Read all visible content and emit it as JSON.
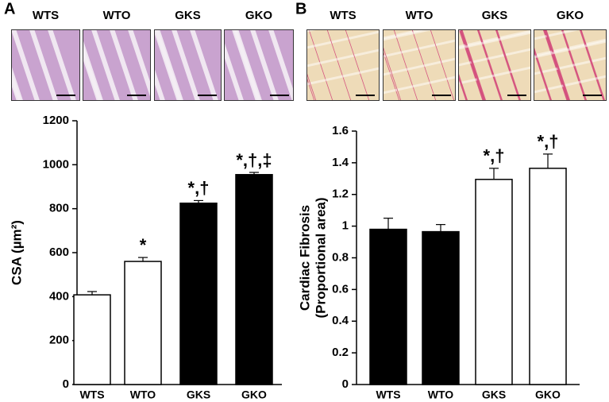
{
  "chart_data": [
    {
      "type": "bar",
      "panel": "A",
      "image_labels": [
        "WTS",
        "WTO",
        "GKS",
        "GKO"
      ],
      "ylabel": [
        "CSA (µm²)"
      ],
      "categories": [
        "WTS",
        "WTO",
        "GKS",
        "GKO"
      ],
      "values": [
        408,
        560,
        825,
        955
      ],
      "errors": [
        15,
        18,
        12,
        10
      ],
      "colors": [
        "#ffffff",
        "#ffffff",
        "#000000",
        "#000000"
      ],
      "annotations": [
        null,
        "*",
        "*,†",
        "*,†,‡"
      ],
      "ylim": [
        0,
        1200
      ],
      "yticks": [
        0,
        200,
        400,
        600,
        800,
        1000,
        1200
      ]
    },
    {
      "type": "bar",
      "panel": "B",
      "image_labels": [
        "WTS",
        "WTO",
        "GKS",
        "GKO"
      ],
      "ylabel": [
        "Cardiac Fibrosis",
        "(Proportional area)"
      ],
      "categories": [
        "WTS",
        "WTO",
        "GKS",
        "GKO"
      ],
      "values": [
        0.98,
        0.965,
        1.295,
        1.365
      ],
      "errors": [
        0.07,
        0.045,
        0.07,
        0.09
      ],
      "colors": [
        "#000000",
        "#000000",
        "#ffffff",
        "#ffffff"
      ],
      "annotations": [
        null,
        null,
        "*,†",
        "*,†"
      ],
      "ylim": [
        0,
        1.6
      ],
      "yticks": [
        0,
        0.2,
        0.4,
        0.6,
        0.8,
        1,
        1.2,
        1.4,
        1.6
      ]
    }
  ]
}
